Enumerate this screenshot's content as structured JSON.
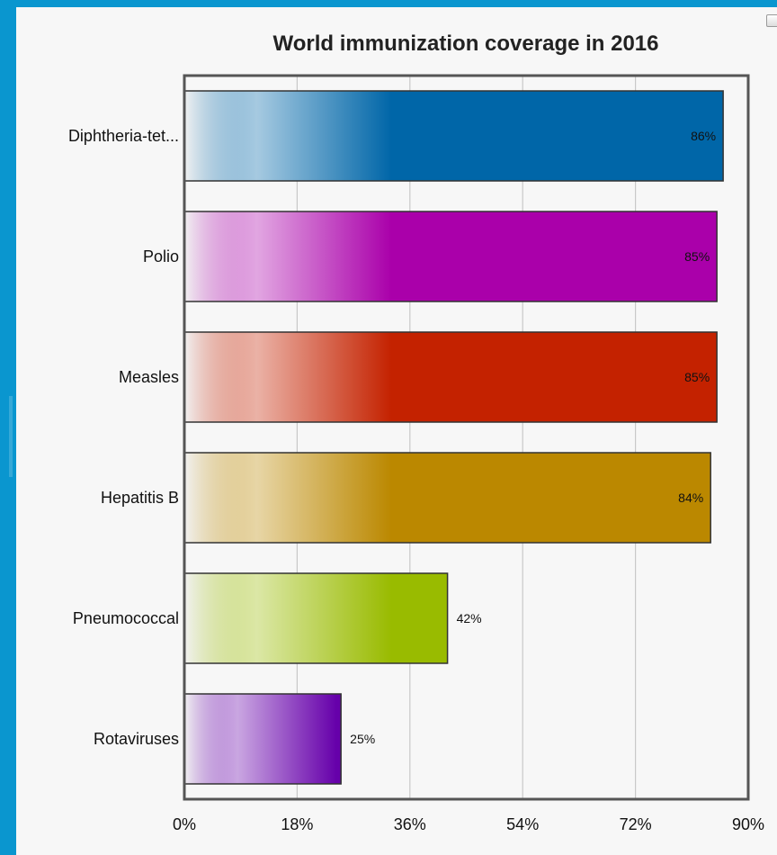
{
  "chart_data": {
    "type": "bar",
    "orientation": "horizontal",
    "title": "World immunization coverage in 2016",
    "xlabel": "",
    "ylabel": "",
    "categories": [
      "Diphtheria-tet...",
      "Polio",
      "Measles",
      "Hepatitis B",
      "Pneumococcal",
      "Rotaviruses"
    ],
    "values": [
      86,
      85,
      85,
      84,
      42,
      25
    ],
    "value_labels": [
      "86%",
      "85%",
      "85%",
      "84%",
      "42%",
      "25%"
    ],
    "colors": [
      "#0066a8",
      "#aa00aa",
      "#c42200",
      "#bb8800",
      "#99bb00",
      "#6600aa"
    ],
    "xlim": [
      0,
      90
    ],
    "x_ticks": [
      0,
      18,
      36,
      54,
      72,
      90
    ],
    "x_tick_labels": [
      "0%",
      "18%",
      "36%",
      "54%",
      "72%",
      "90%"
    ],
    "grid": true,
    "legend": "none"
  }
}
